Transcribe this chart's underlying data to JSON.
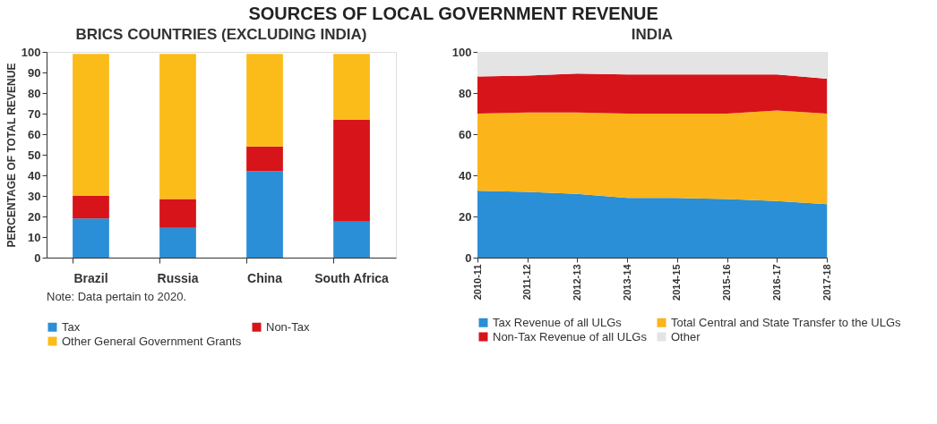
{
  "chart_data": [
    {
      "type": "bar",
      "title": "BRICS COUNTRIES (EXCLUDING INDIA)",
      "ylabel": "PERCENTAGE OF TOTAL REVENUE",
      "categories": [
        "Brazil",
        "Russia",
        "China",
        "South Africa"
      ],
      "stacked": true,
      "ylim": [
        0,
        100
      ],
      "yticks": [
        0,
        10,
        20,
        30,
        40,
        50,
        60,
        70,
        80,
        90,
        100
      ],
      "grid": false,
      "legend": "bottom",
      "series": [
        {
          "name": "Tax",
          "color": "#2a8fd6",
          "values": [
            19,
            14.5,
            42,
            17.5
          ]
        },
        {
          "name": "Non-Tax",
          "color": "#d7141a",
          "values": [
            11,
            14,
            12,
            49.5
          ]
        },
        {
          "name": "Other General Government Grants",
          "color": "#fbbc1a",
          "values": [
            69,
            70.5,
            45,
            32
          ]
        }
      ],
      "annotations": [
        "SOURCES OF LOCAL GOVERNMENT REVENUE",
        "Note: Data pertain to 2020."
      ]
    },
    {
      "type": "area",
      "title": "INDIA",
      "categories": [
        "2010-11",
        "2011-12",
        "2012-13",
        "2013-14",
        "2014-15",
        "2015-16",
        "2016-17",
        "2017-18"
      ],
      "stacked": true,
      "ylim": [
        0,
        100
      ],
      "yticks": [
        0,
        20,
        40,
        60,
        80,
        100
      ],
      "grid": false,
      "legend": "bottom",
      "series": [
        {
          "name": "Tax Revenue of all ULGs",
          "color": "#2a8fd6",
          "values": [
            32.5,
            32,
            31,
            29,
            29,
            28.5,
            27.5,
            26
          ]
        },
        {
          "name": "Total Central and State Transfer to the ULGs",
          "color": "#fbb51a",
          "values": [
            37.5,
            38.5,
            39.5,
            41,
            41,
            41.5,
            44,
            44
          ]
        },
        {
          "name": "Non-Tax Revenue of all ULGs",
          "color": "#d7141a",
          "values": [
            18,
            18,
            19,
            19,
            19,
            19,
            17.5,
            17
          ]
        },
        {
          "name": "Other",
          "color": "#e4e4e4",
          "values": [
            12,
            11.5,
            10.5,
            11,
            11,
            11,
            11,
            13
          ]
        }
      ]
    }
  ]
}
